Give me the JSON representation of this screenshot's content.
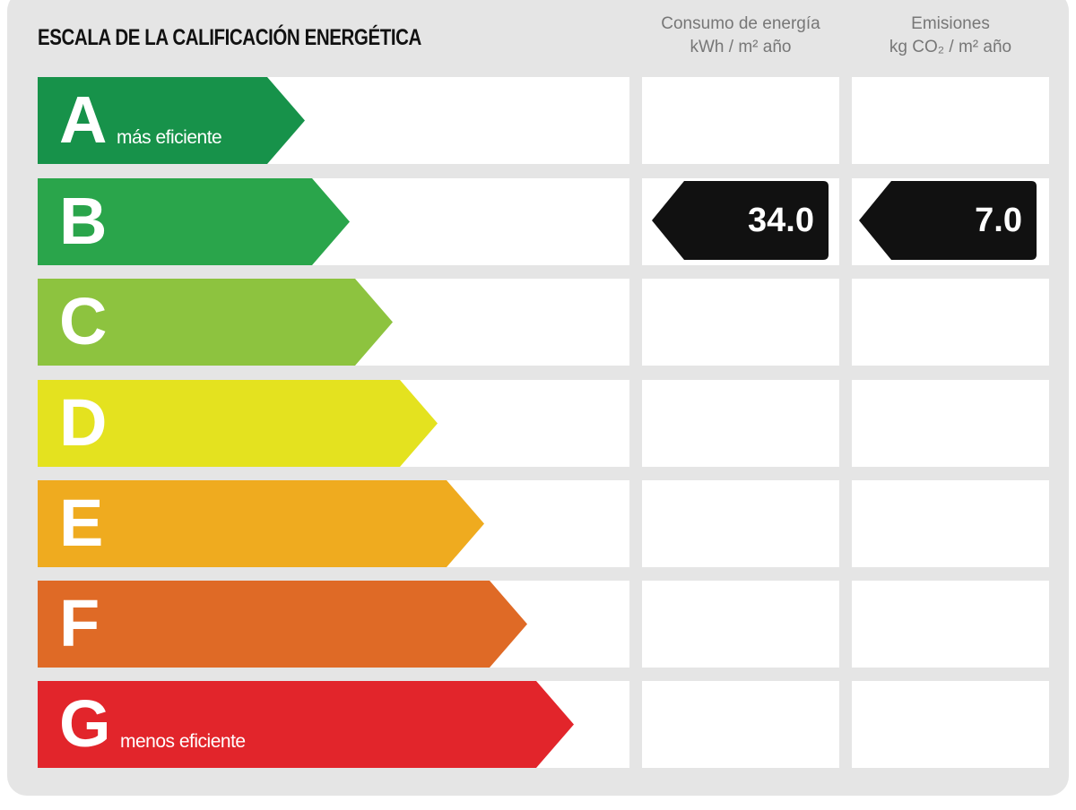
{
  "title": "ESCALA DE LA CALIFICACIÓN ENERGÉTICA",
  "columns": {
    "consumo": {
      "line1": "Consumo de energía",
      "line2": "kWh / m² año"
    },
    "emisiones": {
      "line1": "Emisiones",
      "line2": "kg CO₂ / m² año"
    }
  },
  "ratings": [
    {
      "letter": "A",
      "sub": "más eficiente",
      "color": "#17924a"
    },
    {
      "letter": "B",
      "sub": "",
      "color": "#2aa54b"
    },
    {
      "letter": "C",
      "sub": "",
      "color": "#8dc33f"
    },
    {
      "letter": "D",
      "sub": "",
      "color": "#e4e21f"
    },
    {
      "letter": "E",
      "sub": "",
      "color": "#efab1f"
    },
    {
      "letter": "F",
      "sub": "",
      "color": "#df6a26"
    },
    {
      "letter": "G",
      "sub": "menos eficiente",
      "color": "#e2252b"
    }
  ],
  "result": {
    "rating": "B",
    "consumo": "34.0",
    "emisiones": "7.0",
    "color": "#111111"
  }
}
